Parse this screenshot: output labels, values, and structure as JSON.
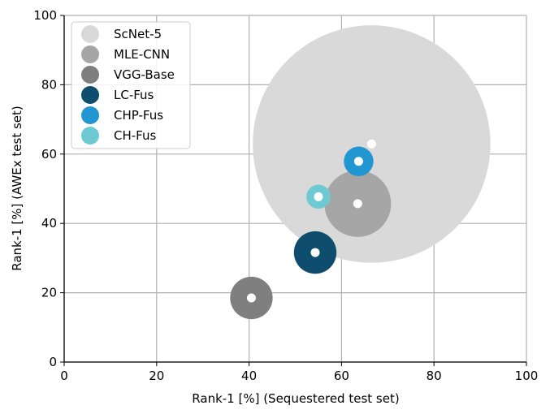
{
  "chart_data": {
    "type": "scatter",
    "xlabel": "Rank-1 [%] (Sequestered test set)",
    "ylabel": "Rank-1 [%] (AWEx test set)",
    "xlim": [
      0,
      100
    ],
    "ylim": [
      0,
      100
    ],
    "xticks": [
      "0",
      "20",
      "40",
      "60",
      "80",
      "100"
    ],
    "yticks": [
      "0",
      "20",
      "40",
      "60",
      "80",
      "100"
    ],
    "grid": true,
    "legend_position": "top-left",
    "series": [
      {
        "name": "ScNet-5",
        "x": 66.5,
        "y": 62.9,
        "radius": 25.7,
        "color": "#d9d9d9"
      },
      {
        "name": "MLE-CNN",
        "x": 63.5,
        "y": 45.7,
        "radius": 7.2,
        "color": "#a6a6a6"
      },
      {
        "name": "VGG-Base",
        "x": 40.5,
        "y": 18.5,
        "radius": 4.6,
        "color": "#7f7f7f"
      },
      {
        "name": "LC-Fus",
        "x": 54.3,
        "y": 31.6,
        "radius": 4.6,
        "color": "#0f4d6e"
      },
      {
        "name": "CHP-Fus",
        "x": 63.7,
        "y": 57.9,
        "radius": 3.2,
        "color": "#2196d1"
      },
      {
        "name": "CH-Fus",
        "x": 55.0,
        "y": 47.7,
        "radius": 2.6,
        "color": "#6ecad2"
      }
    ]
  }
}
